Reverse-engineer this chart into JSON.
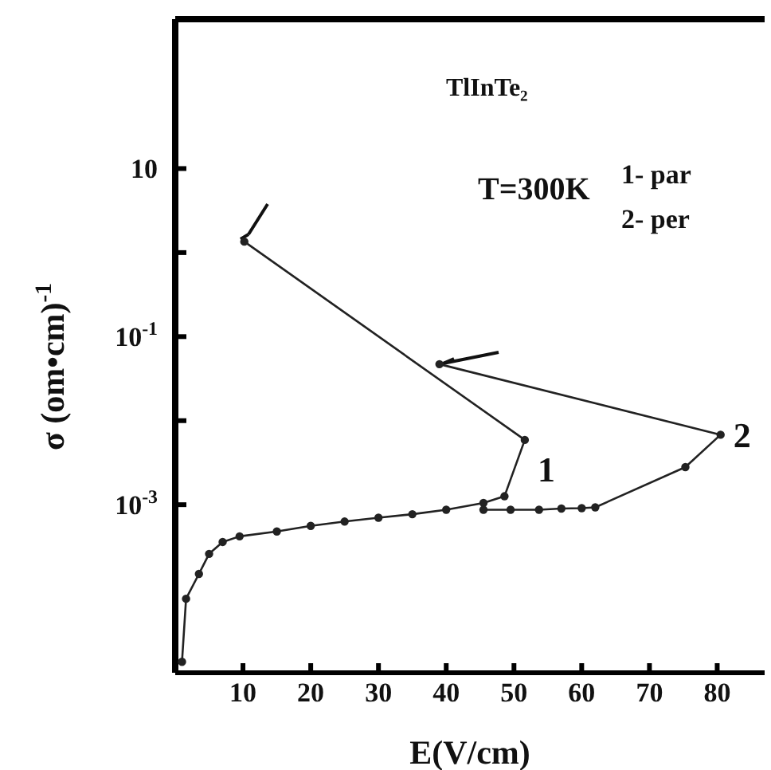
{
  "chart_data": {
    "type": "line",
    "xlabel": "E(V/cm)",
    "ylabel": "σ (om•cm)$^{-1}$",
    "annotations": [
      "TlInTe₂",
      "T=300K",
      "1- par",
      "2- per"
    ],
    "series": [
      {
        "name": "1",
        "color": "#222222",
        "x": [
          1,
          1.6,
          3.5,
          5,
          7,
          9.5,
          15,
          20,
          25,
          30,
          35,
          40,
          45.5,
          48.6,
          51.6,
          10.2
        ],
        "values": [
          1.35e-05,
          7.6e-05,
          0.00015,
          0.00026,
          0.00036,
          0.00042,
          0.00048,
          0.00056,
          0.00063,
          0.0007,
          0.00077,
          0.00087,
          0.00105,
          0.00126,
          0.0059,
          1.35
        ]
      },
      {
        "name": "2",
        "color": "#222222",
        "x": [
          45.5,
          49.5,
          53.7,
          57,
          60,
          62,
          75.3,
          80.5,
          39
        ],
        "values": [
          0.00087,
          0.00087,
          0.00087,
          0.0009,
          0.00091,
          0.00093,
          0.0028,
          0.0068,
          0.047
        ]
      }
    ],
    "xlim": [
      0,
      87
    ],
    "xticks": [
      10,
      20,
      30,
      40,
      50,
      60,
      70,
      80
    ],
    "ylim": [
      1e-05,
      600
    ],
    "log": "y",
    "yticks": [
      {
        "value": 10,
        "label": "10"
      },
      {
        "value": 1,
        "label": null
      },
      {
        "value": 0.1,
        "label": "10$^{-1}$"
      },
      {
        "value": 0.01,
        "label": null
      },
      {
        "value": 0.001,
        "label": "10$^{-3}$"
      }
    ],
    "marker": "circle"
  }
}
